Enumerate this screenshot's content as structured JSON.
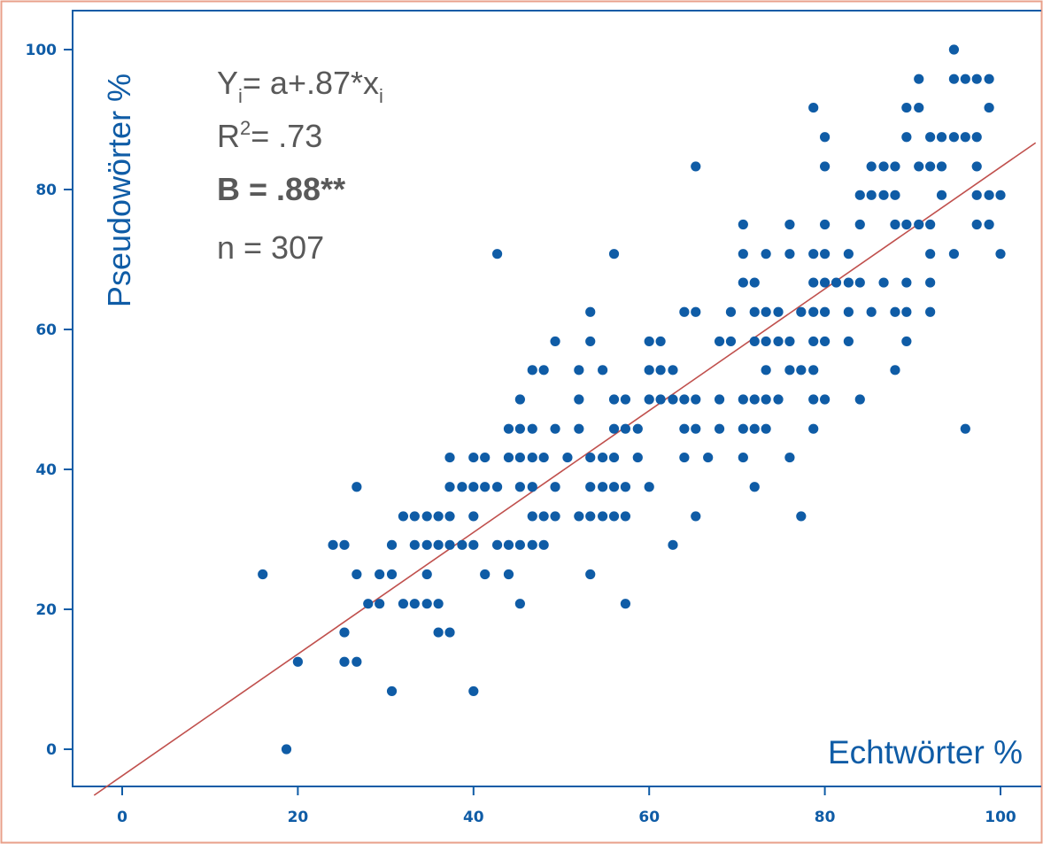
{
  "chart_data": {
    "type": "scatter",
    "xlabel": "Echtwörter %",
    "ylabel": "Pseudowörter %",
    "xlim": [
      -3.5,
      103.5
    ],
    "ylim": [
      -5,
      103
    ],
    "x_ticks": [
      "0",
      "20",
      "40",
      "60",
      "80",
      "100"
    ],
    "y_ticks": [
      "0",
      "20",
      "40",
      "60",
      "80",
      "100"
    ],
    "grid": false,
    "annotations": {
      "equation_prefix": "Y",
      "equation_prefix_sub": "i",
      "equation_body": "= a+.87*x",
      "equation_sub": "i",
      "r2_base": "R",
      "r2_sup": "2",
      "r2_value": "= .73",
      "b_value": "B = .88**",
      "n_value": "n = 307"
    },
    "regression_line": {
      "slope": 0.87,
      "intercept": -3.8
    },
    "colors": {
      "points": "#0f5ca6",
      "regression_line": "#c0504d",
      "axes_labels": "#0f5ca6",
      "annotation_text": "#595959",
      "frame_border": "#e8a08a",
      "plot_border": "#0f5ca6"
    },
    "points": [
      [
        16,
        25
      ],
      [
        18.7,
        0
      ],
      [
        20,
        12.5
      ],
      [
        24,
        29.2
      ],
      [
        25.3,
        29.2
      ],
      [
        25.3,
        16.7
      ],
      [
        25.3,
        12.5
      ],
      [
        26.7,
        37.5
      ],
      [
        26.7,
        25
      ],
      [
        26.7,
        12.5
      ],
      [
        28,
        20.8
      ],
      [
        29.3,
        20.8
      ],
      [
        29.3,
        25
      ],
      [
        30.7,
        25
      ],
      [
        30.7,
        29.2
      ],
      [
        30.7,
        8.3
      ],
      [
        32,
        33.3
      ],
      [
        32,
        20.8
      ],
      [
        33.3,
        33.3
      ],
      [
        33.3,
        29.2
      ],
      [
        33.3,
        20.8
      ],
      [
        34.7,
        33.3
      ],
      [
        34.7,
        29.2
      ],
      [
        34.7,
        25
      ],
      [
        34.7,
        20.8
      ],
      [
        36,
        33.3
      ],
      [
        36,
        29.2
      ],
      [
        36,
        20.8
      ],
      [
        36,
        16.7
      ],
      [
        37.3,
        41.7
      ],
      [
        37.3,
        37.5
      ],
      [
        37.3,
        33.3
      ],
      [
        37.3,
        29.2
      ],
      [
        37.3,
        16.7
      ],
      [
        38.7,
        37.5
      ],
      [
        38.7,
        29.2
      ],
      [
        40,
        41.7
      ],
      [
        40,
        37.5
      ],
      [
        40,
        33.3
      ],
      [
        40,
        29.2
      ],
      [
        40,
        8.3
      ],
      [
        41.3,
        41.7
      ],
      [
        41.3,
        37.5
      ],
      [
        41.3,
        25
      ],
      [
        42.7,
        70.8
      ],
      [
        42.7,
        37.5
      ],
      [
        42.7,
        29.2
      ],
      [
        44,
        45.8
      ],
      [
        44,
        41.7
      ],
      [
        44,
        29.2
      ],
      [
        44,
        25
      ],
      [
        45.3,
        50
      ],
      [
        45.3,
        45.8
      ],
      [
        45.3,
        41.7
      ],
      [
        45.3,
        37.5
      ],
      [
        45.3,
        29.2
      ],
      [
        45.3,
        20.8
      ],
      [
        46.7,
        54.2
      ],
      [
        46.7,
        45.8
      ],
      [
        46.7,
        41.7
      ],
      [
        46.7,
        37.5
      ],
      [
        46.7,
        33.3
      ],
      [
        46.7,
        29.2
      ],
      [
        48,
        54.2
      ],
      [
        48,
        41.7
      ],
      [
        48,
        33.3
      ],
      [
        48,
        29.2
      ],
      [
        49.3,
        58.3
      ],
      [
        49.3,
        45.8
      ],
      [
        49.3,
        37.5
      ],
      [
        49.3,
        33.3
      ],
      [
        50.7,
        41.7
      ],
      [
        52,
        54.2
      ],
      [
        52,
        50
      ],
      [
        52,
        45.8
      ],
      [
        52,
        33.3
      ],
      [
        53.3,
        62.5
      ],
      [
        53.3,
        58.3
      ],
      [
        53.3,
        41.7
      ],
      [
        53.3,
        37.5
      ],
      [
        53.3,
        33.3
      ],
      [
        53.3,
        25
      ],
      [
        54.7,
        54.2
      ],
      [
        54.7,
        41.7
      ],
      [
        54.7,
        37.5
      ],
      [
        54.7,
        33.3
      ],
      [
        56,
        70.8
      ],
      [
        56,
        50
      ],
      [
        56,
        45.8
      ],
      [
        56,
        41.7
      ],
      [
        56,
        37.5
      ],
      [
        56,
        33.3
      ],
      [
        57.3,
        50
      ],
      [
        57.3,
        45.8
      ],
      [
        57.3,
        37.5
      ],
      [
        57.3,
        33.3
      ],
      [
        57.3,
        20.8
      ],
      [
        58.7,
        45.8
      ],
      [
        58.7,
        41.7
      ],
      [
        60,
        58.3
      ],
      [
        60,
        54.2
      ],
      [
        60,
        50
      ],
      [
        60,
        37.5
      ],
      [
        61.3,
        58.3
      ],
      [
        61.3,
        54.2
      ],
      [
        61.3,
        50
      ],
      [
        62.7,
        54.2
      ],
      [
        62.7,
        50
      ],
      [
        62.7,
        29.2
      ],
      [
        64,
        62.5
      ],
      [
        64,
        50
      ],
      [
        64,
        45.8
      ],
      [
        64,
        41.7
      ],
      [
        65.3,
        83.3
      ],
      [
        65.3,
        62.5
      ],
      [
        65.3,
        50
      ],
      [
        65.3,
        45.8
      ],
      [
        65.3,
        33.3
      ],
      [
        66.7,
        41.7
      ],
      [
        68,
        50
      ],
      [
        68,
        45.8
      ],
      [
        68,
        58.3
      ],
      [
        69.3,
        62.5
      ],
      [
        69.3,
        58.3
      ],
      [
        70.7,
        75
      ],
      [
        70.7,
        70.8
      ],
      [
        70.7,
        66.7
      ],
      [
        70.7,
        50
      ],
      [
        70.7,
        45.8
      ],
      [
        70.7,
        41.7
      ],
      [
        72,
        66.7
      ],
      [
        72,
        62.5
      ],
      [
        72,
        58.3
      ],
      [
        72,
        50
      ],
      [
        72,
        45.8
      ],
      [
        72,
        37.5
      ],
      [
        73.3,
        70.8
      ],
      [
        73.3,
        62.5
      ],
      [
        73.3,
        58.3
      ],
      [
        73.3,
        54.2
      ],
      [
        73.3,
        50
      ],
      [
        73.3,
        45.8
      ],
      [
        74.7,
        62.5
      ],
      [
        74.7,
        58.3
      ],
      [
        74.7,
        50
      ],
      [
        76,
        75
      ],
      [
        76,
        70.8
      ],
      [
        76,
        58.3
      ],
      [
        76,
        54.2
      ],
      [
        76,
        41.7
      ],
      [
        77.3,
        62.5
      ],
      [
        77.3,
        54.2
      ],
      [
        77.3,
        33.3
      ],
      [
        78.7,
        91.7
      ],
      [
        78.7,
        70.8
      ],
      [
        78.7,
        66.7
      ],
      [
        78.7,
        62.5
      ],
      [
        78.7,
        58.3
      ],
      [
        78.7,
        54.2
      ],
      [
        78.7,
        50
      ],
      [
        78.7,
        45.8
      ],
      [
        80,
        87.5
      ],
      [
        80,
        83.3
      ],
      [
        80,
        75
      ],
      [
        80,
        70.8
      ],
      [
        80,
        66.7
      ],
      [
        80,
        62.5
      ],
      [
        80,
        58.3
      ],
      [
        80,
        50
      ],
      [
        81.3,
        66.7
      ],
      [
        82.7,
        70.8
      ],
      [
        82.7,
        66.7
      ],
      [
        82.7,
        62.5
      ],
      [
        82.7,
        58.3
      ],
      [
        84,
        79.2
      ],
      [
        84,
        75
      ],
      [
        84,
        66.7
      ],
      [
        84,
        50
      ],
      [
        85.3,
        83.3
      ],
      [
        85.3,
        79.2
      ],
      [
        85.3,
        62.5
      ],
      [
        86.7,
        83.3
      ],
      [
        86.7,
        79.2
      ],
      [
        86.7,
        66.7
      ],
      [
        88,
        83.3
      ],
      [
        88,
        79.2
      ],
      [
        88,
        75
      ],
      [
        88,
        62.5
      ],
      [
        88,
        54.2
      ],
      [
        89.3,
        91.7
      ],
      [
        89.3,
        87.5
      ],
      [
        89.3,
        75
      ],
      [
        89.3,
        66.7
      ],
      [
        89.3,
        62.5
      ],
      [
        89.3,
        58.3
      ],
      [
        90.7,
        95.8
      ],
      [
        90.7,
        91.7
      ],
      [
        90.7,
        83.3
      ],
      [
        90.7,
        75
      ],
      [
        92,
        87.5
      ],
      [
        92,
        83.3
      ],
      [
        92,
        75
      ],
      [
        92,
        70.8
      ],
      [
        92,
        66.7
      ],
      [
        92,
        62.5
      ],
      [
        93.3,
        87.5
      ],
      [
        93.3,
        83.3
      ],
      [
        93.3,
        79.2
      ],
      [
        94.7,
        100
      ],
      [
        94.7,
        87.5
      ],
      [
        94.7,
        70.8
      ],
      [
        94.7,
        95.8
      ],
      [
        96,
        95.8
      ],
      [
        96,
        87.5
      ],
      [
        96,
        45.8
      ],
      [
        97.3,
        95.8
      ],
      [
        97.3,
        87.5
      ],
      [
        97.3,
        83.3
      ],
      [
        97.3,
        79.2
      ],
      [
        97.3,
        75
      ],
      [
        98.7,
        95.8
      ],
      [
        98.7,
        91.7
      ],
      [
        98.7,
        79.2
      ],
      [
        98.7,
        75
      ],
      [
        100,
        79.2
      ],
      [
        100,
        70.8
      ]
    ]
  }
}
